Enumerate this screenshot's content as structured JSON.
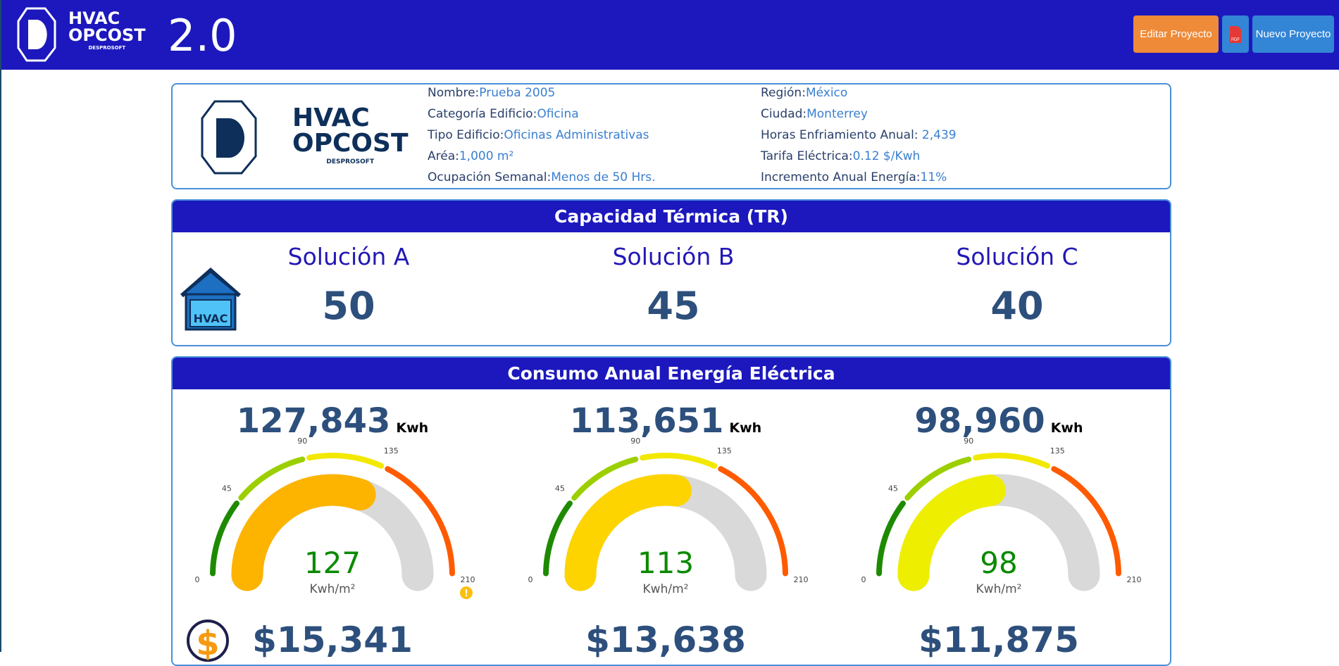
{
  "header": {
    "logo_text": "HVAC OPCOST DESPROSOFT",
    "version": "2.0",
    "edit_button": "Editar Proyecto",
    "pdf_icon": "pdf-icon",
    "new_button": "Nuevo Proyecto"
  },
  "project": {
    "logo_text": "HVAC OPCOST DESPROSOFT",
    "left": [
      {
        "label": "Nombre:",
        "value": "Prueba 2005"
      },
      {
        "label": "Categoría Edificio:",
        "value": "Oficina"
      },
      {
        "label": "Tipo Edificio:",
        "value": "Oficinas Administrativas"
      },
      {
        "label": "Aréa:",
        "value": "1,000 m²"
      },
      {
        "label": "Ocupación Semanal:",
        "value": "Menos de 50 Hrs."
      }
    ],
    "right": [
      {
        "label": "Región:",
        "value": "México"
      },
      {
        "label": "Ciudad:",
        "value": "Monterrey"
      },
      {
        "label": "Horas Enfriamiento Anual: ",
        "value": "2,439"
      },
      {
        "label": "Tarifa Eléctrica:",
        "value": "0.12 $/Kwh"
      },
      {
        "label": "Incremento Anual Energía:",
        "value": "11%"
      }
    ]
  },
  "capacity": {
    "title": "Capacidad Térmica (TR)",
    "icon_text": "HVAC",
    "solutions": [
      {
        "name": "Solución A",
        "value": "50"
      },
      {
        "name": "Solución B",
        "value": "45"
      },
      {
        "name": "Solución C",
        "value": "40"
      }
    ]
  },
  "consumption": {
    "title": "Consumo Anual Energía Eléctrica",
    "unit": "Kwh",
    "gauge_unit": "Kwh/m²",
    "ticks": [
      "0",
      "45",
      "90",
      "135",
      "210"
    ],
    "gauge_max": 210,
    "items": [
      {
        "total": "127,843",
        "gauge_value": 127,
        "gauge_label": "127",
        "cost": "$15,341",
        "fill": "#fdb400",
        "warning": true
      },
      {
        "total": "113,651",
        "gauge_value": 113,
        "gauge_label": "113",
        "cost": "$13,638",
        "fill": "#fdd400",
        "warning": false
      },
      {
        "total": "98,960",
        "gauge_value": 98,
        "gauge_label": "98",
        "cost": "$11,875",
        "fill": "#eeee00",
        "warning": false
      }
    ]
  },
  "colors": {
    "brand": "#1c18bd",
    "edit": "#ee8a38",
    "new": "#3385d6"
  }
}
